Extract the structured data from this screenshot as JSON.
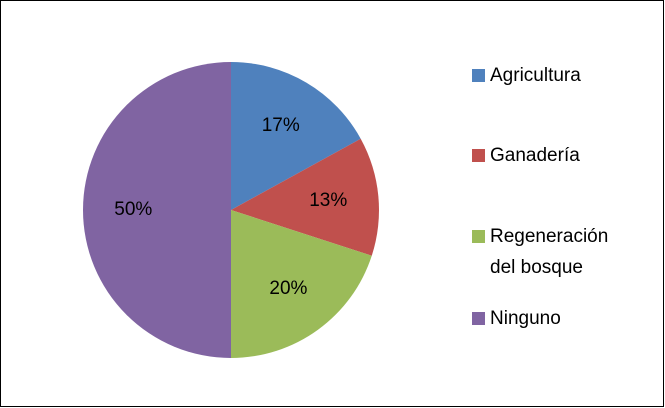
{
  "chart_data": {
    "type": "pie",
    "categories": [
      "Agricultura",
      "Ganadería",
      "Regeneración del bosque",
      "Ninguno"
    ],
    "values": [
      17,
      13,
      20,
      50
    ],
    "value_labels": [
      "17%",
      "13%",
      "20%",
      "50%"
    ],
    "colors": [
      "#4f81bd",
      "#c0504d",
      "#9bbb59",
      "#8064a2"
    ],
    "legend": "right"
  }
}
